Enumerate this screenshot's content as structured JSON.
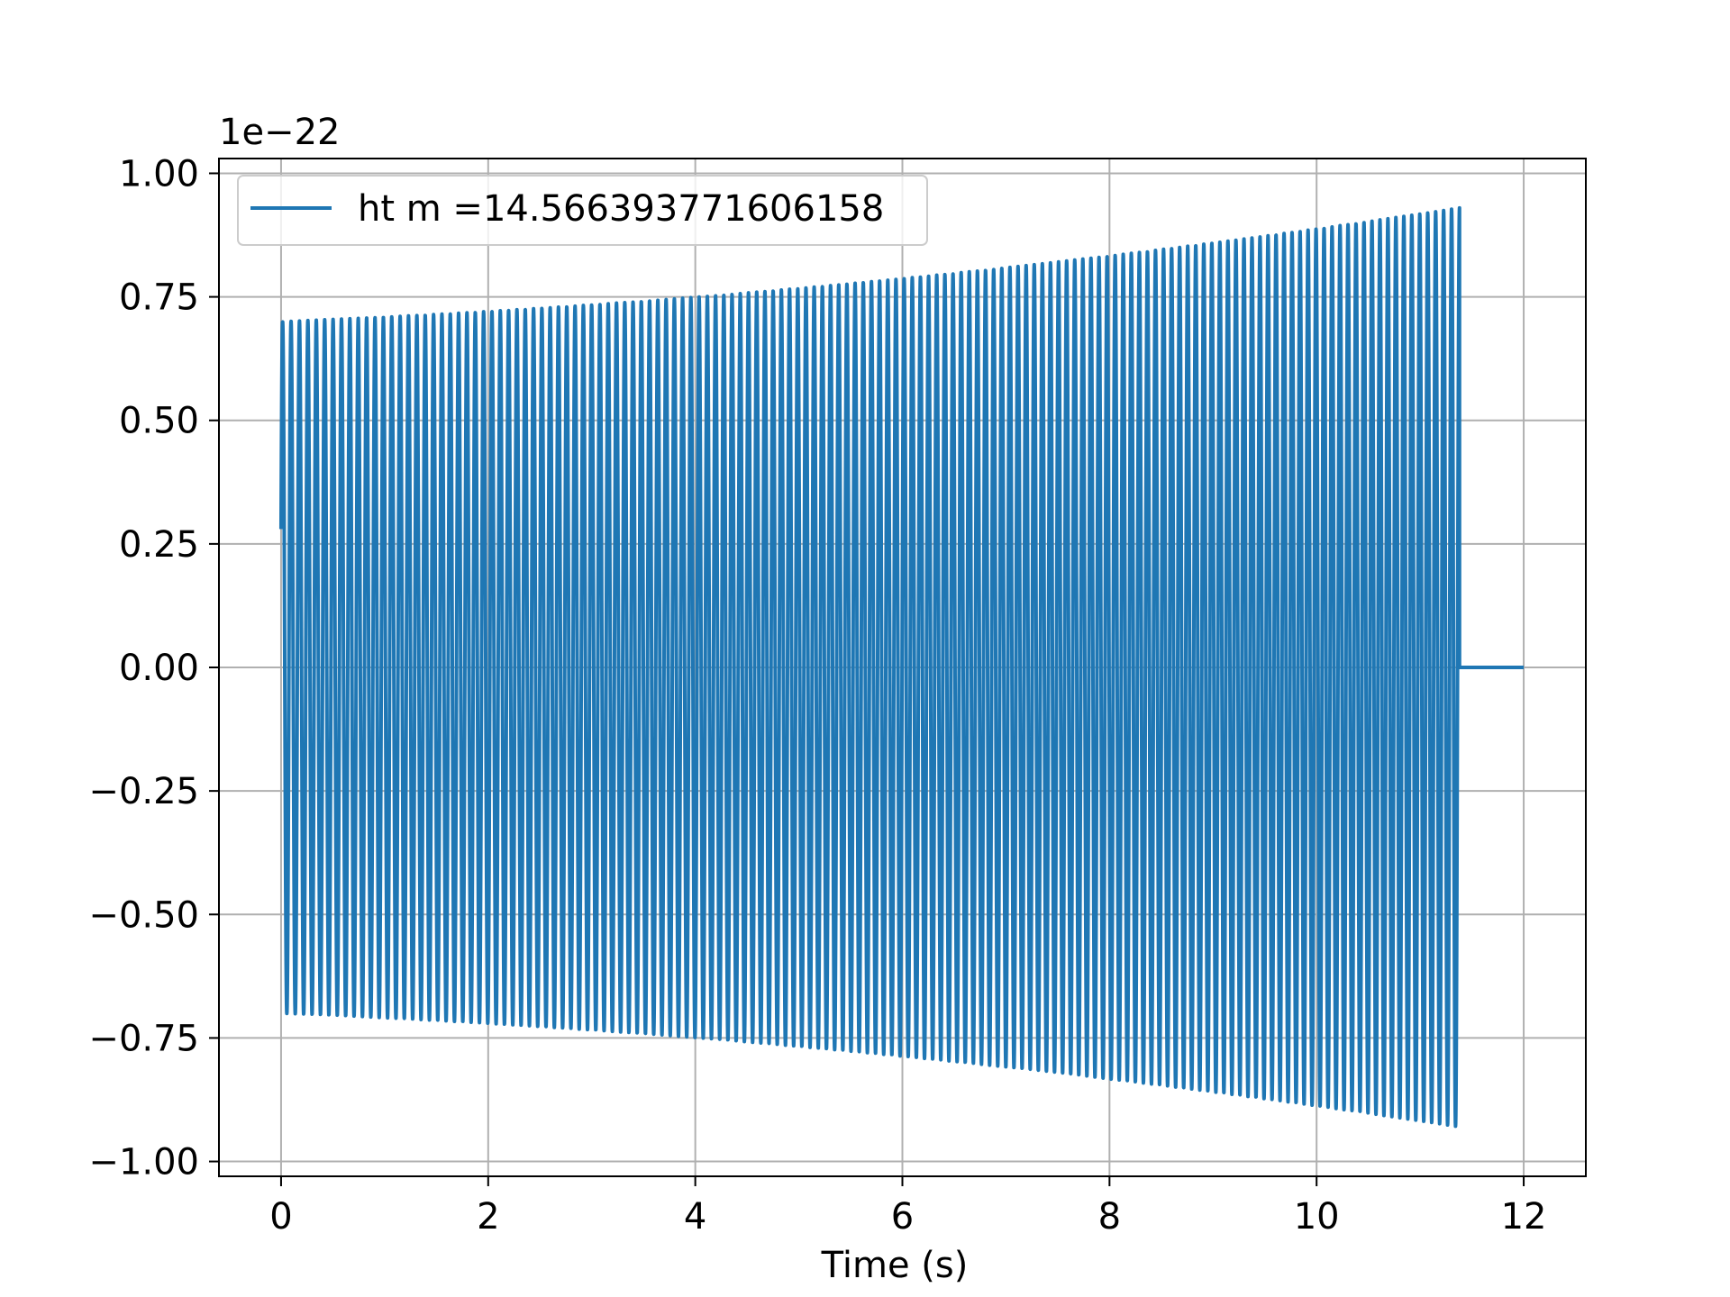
{
  "chart_data": {
    "type": "line",
    "title": "",
    "xlabel": "Time (s)",
    "ylabel": "",
    "y_offset_label": "1e−22",
    "xlim": [
      -0.6,
      12.6
    ],
    "ylim": [
      -1.03,
      1.03
    ],
    "xticks": [
      0,
      2,
      4,
      6,
      8,
      10,
      12
    ],
    "xtick_labels": [
      "0",
      "2",
      "4",
      "6",
      "8",
      "10",
      "12"
    ],
    "yticks": [
      1.0,
      0.75,
      0.5,
      0.25,
      0.0,
      -0.25,
      -0.5,
      -0.75,
      -1.0
    ],
    "ytick_labels": [
      "1.00",
      "0.75",
      "0.50",
      "0.25",
      "0.00",
      "−0.25",
      "−0.50",
      "−0.75",
      "−1.00"
    ],
    "grid": true,
    "legend_position": "upper-left",
    "series": [
      {
        "name": "ht m =14.566393771606158",
        "color": "#1f77b4",
        "signal": {
          "form": "chirp",
          "t_start": 0.0,
          "t_end": 11.38,
          "start_value": 0.28,
          "amplitude_start": 0.7,
          "amplitude_end": 0.93,
          "cycles": 140,
          "tail_value": 0.0,
          "tail_end": 12.0
        },
        "envelope_points": [
          {
            "t": 0.0,
            "upper": 0.71,
            "lower": -0.7
          },
          {
            "t": 2.0,
            "upper": 0.72,
            "lower": -0.72
          },
          {
            "t": 4.0,
            "upper": 0.75,
            "lower": -0.74
          },
          {
            "t": 6.0,
            "upper": 0.79,
            "lower": -0.78
          },
          {
            "t": 8.0,
            "upper": 0.83,
            "lower": -0.82
          },
          {
            "t": 10.0,
            "upper": 0.88,
            "lower": -0.88
          },
          {
            "t": 11.38,
            "upper": 0.93,
            "lower": -0.93
          }
        ]
      }
    ]
  }
}
